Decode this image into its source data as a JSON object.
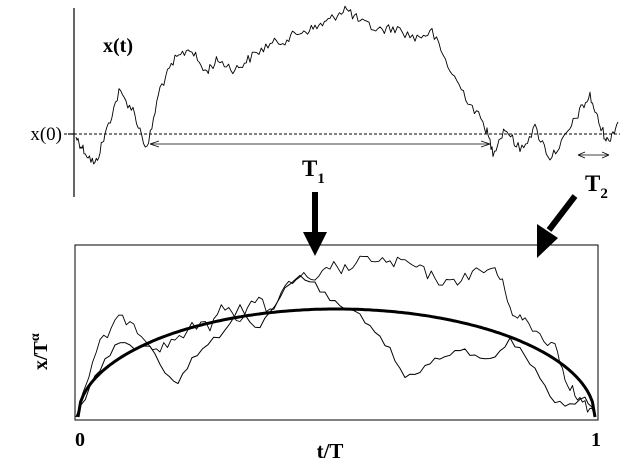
{
  "top_panel": {
    "y_label": "x(t)",
    "baseline_label": "x(0)",
    "interval_1": {
      "symbol": "T",
      "subscript": "1"
    },
    "interval_2": {
      "symbol": "T",
      "subscript": "2"
    }
  },
  "bottom_panel": {
    "y_label": {
      "base": "x/T",
      "superscript": "α"
    },
    "x_label": "t/T",
    "x_ticks": [
      "0",
      "1"
    ]
  },
  "colors": {
    "ink": "#000000",
    "background": "#ffffff"
  },
  "icons": [
    "arrow-down-icon",
    "arrow-diagonal-icon"
  ]
}
